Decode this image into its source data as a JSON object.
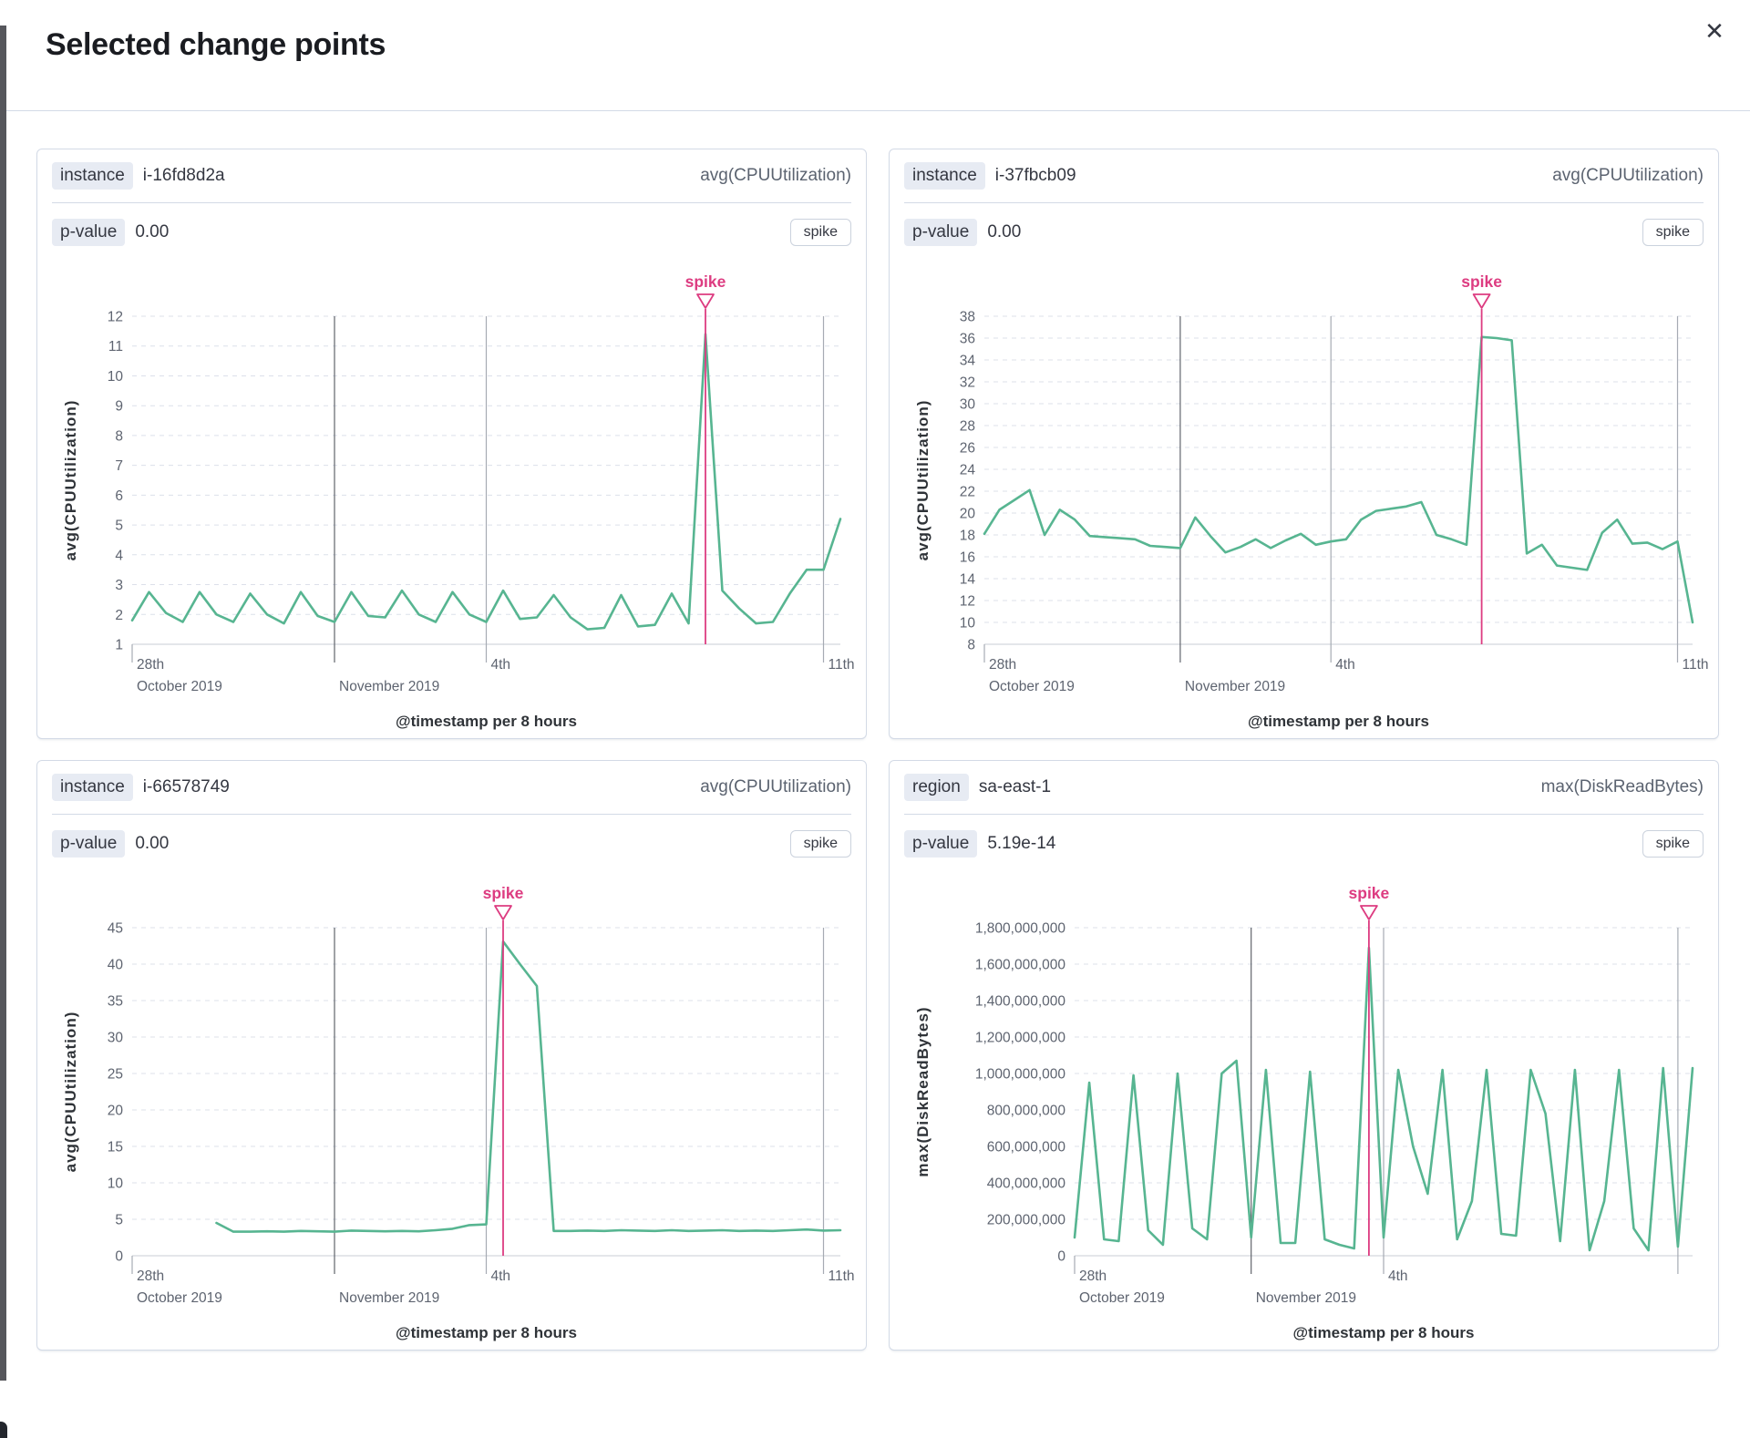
{
  "modal": {
    "title": "Selected change points",
    "close_label": "✕"
  },
  "colors": {
    "series_line": "#57B591",
    "annotation_pink": "#DD3C81",
    "grid_dashed": "#DCE0EA",
    "vline_dark": "#60646C",
    "vline_light": "#A6ABB3",
    "axis_line": "#C8CCD5",
    "tick_text": "#5E6470",
    "axis_title_text": "#2F3338"
  },
  "panels": [
    {
      "badge": "instance",
      "badge_value": "i-16fd8d2a",
      "metric": "avg(CPUUtilization)",
      "p_label": "p-value",
      "p_value": "0.00",
      "change_type": "spike"
    },
    {
      "badge": "instance",
      "badge_value": "i-37fbcb09",
      "metric": "avg(CPUUtilization)",
      "p_label": "p-value",
      "p_value": "0.00",
      "change_type": "spike"
    },
    {
      "badge": "instance",
      "badge_value": "i-66578749",
      "metric": "avg(CPUUtilization)",
      "p_label": "p-value",
      "p_value": "0.00",
      "change_type": "spike"
    },
    {
      "badge": "region",
      "badge_value": "sa-east-1",
      "metric": "max(DiskReadBytes)",
      "p_label": "p-value",
      "p_value": "5.19e-14",
      "change_type": "spike"
    }
  ],
  "chart_data": [
    {
      "type": "line",
      "title": "",
      "ylabel": "avg(CPUUtilization)",
      "xlabel": "@timestamp per 8 hours",
      "ylim": [
        1,
        12
      ],
      "y_ticks": [
        1,
        2,
        3,
        4,
        5,
        6,
        7,
        8,
        9,
        10,
        11,
        12
      ],
      "y_tick_labels": [
        "1",
        "2",
        "3",
        "4",
        "5",
        "6",
        "7",
        "8",
        "9",
        "10",
        "11",
        "12"
      ],
      "grid": true,
      "legend": false,
      "annotation": {
        "label": "spike",
        "index": 34
      },
      "x_ticks": [
        {
          "index": 0,
          "line": "tick",
          "row1": "28th",
          "row2": "October 2019"
        },
        {
          "index": 12,
          "line": "dark",
          "row1": "",
          "row2": "November 2019"
        },
        {
          "index": 21,
          "line": "light",
          "row1": "4th",
          "row2": ""
        },
        {
          "index": 41,
          "line": "light",
          "row1": "11th",
          "row2": ""
        }
      ],
      "values": [
        1.8,
        2.75,
        2.05,
        1.75,
        2.75,
        2.0,
        1.75,
        2.7,
        2.0,
        1.7,
        2.75,
        1.95,
        1.75,
        2.75,
        1.95,
        1.9,
        2.8,
        2.0,
        1.75,
        2.75,
        2.0,
        1.75,
        2.8,
        1.85,
        1.9,
        2.65,
        1.9,
        1.5,
        1.55,
        2.65,
        1.6,
        1.65,
        2.7,
        1.7,
        11.4,
        2.8,
        2.2,
        1.7,
        1.75,
        2.7,
        3.5,
        3.5,
        5.2
      ]
    },
    {
      "type": "line",
      "title": "",
      "ylabel": "avg(CPUUtilization)",
      "xlabel": "@timestamp per 8 hours",
      "ylim": [
        8,
        38
      ],
      "y_ticks": [
        8,
        10,
        12,
        14,
        16,
        18,
        20,
        22,
        24,
        26,
        28,
        30,
        32,
        34,
        36,
        38
      ],
      "y_tick_labels": [
        "8",
        "10",
        "12",
        "14",
        "16",
        "18",
        "20",
        "22",
        "24",
        "26",
        "28",
        "30",
        "32",
        "34",
        "36",
        "38"
      ],
      "grid": true,
      "legend": false,
      "annotation": {
        "label": "spike",
        "index": 33
      },
      "x_ticks": [
        {
          "index": 0,
          "line": "tick",
          "row1": "28th",
          "row2": "October 2019"
        },
        {
          "index": 13,
          "line": "dark",
          "row1": "",
          "row2": "November 2019"
        },
        {
          "index": 23,
          "line": "light",
          "row1": "4th",
          "row2": ""
        },
        {
          "index": 46,
          "line": "light",
          "row1": "11th",
          "row2": ""
        }
      ],
      "values": [
        18.1,
        20.3,
        21.2,
        22.1,
        18.0,
        20.3,
        19.4,
        17.9,
        17.8,
        17.7,
        17.6,
        17.0,
        16.9,
        16.8,
        19.6,
        17.9,
        16.4,
        16.9,
        17.6,
        16.8,
        17.5,
        18.1,
        17.1,
        17.4,
        17.6,
        19.4,
        20.2,
        20.4,
        20.6,
        21.0,
        18.0,
        17.6,
        17.1,
        36.1,
        36.0,
        35.8,
        16.3,
        17.1,
        15.2,
        15.0,
        14.8,
        18.2,
        19.4,
        17.2,
        17.3,
        16.7,
        17.4,
        10.0
      ]
    },
    {
      "type": "line",
      "title": "",
      "ylabel": "avg(CPUUtilization)",
      "xlabel": "@timestamp per 8 hours",
      "ylim": [
        0,
        45
      ],
      "y_ticks": [
        0,
        5,
        10,
        15,
        20,
        25,
        30,
        35,
        40,
        45
      ],
      "y_tick_labels": [
        "0",
        "5",
        "10",
        "15",
        "20",
        "25",
        "30",
        "35",
        "40",
        "45"
      ],
      "grid": true,
      "legend": false,
      "annotation": {
        "label": "spike",
        "index": 22
      },
      "x_ticks": [
        {
          "index": 0,
          "line": "tick",
          "row1": "28th",
          "row2": "October 2019"
        },
        {
          "index": 12,
          "line": "dark",
          "row1": "",
          "row2": "November 2019"
        },
        {
          "index": 21,
          "line": "light",
          "row1": "4th",
          "row2": ""
        },
        {
          "index": 41,
          "line": "light",
          "row1": "11th",
          "row2": ""
        }
      ],
      "values": [
        null,
        null,
        null,
        null,
        null,
        4.5,
        3.3,
        3.3,
        3.35,
        3.3,
        3.4,
        3.35,
        3.3,
        3.45,
        3.4,
        3.35,
        3.4,
        3.35,
        3.5,
        3.7,
        4.2,
        4.3,
        43.1,
        40.0,
        37.0,
        3.4,
        3.4,
        3.45,
        3.4,
        3.5,
        3.45,
        3.4,
        3.5,
        3.4,
        3.45,
        3.5,
        3.4,
        3.45,
        3.4,
        3.5,
        3.6,
        3.45,
        3.5
      ]
    },
    {
      "type": "line",
      "title": "",
      "ylabel": "max(DiskReadBytes)",
      "xlabel": "@timestamp per 8 hours",
      "ylim": [
        0,
        1800000000
      ],
      "y_ticks": [
        0,
        200000000,
        400000000,
        600000000,
        800000000,
        1000000000,
        1200000000,
        1400000000,
        1600000000,
        1800000000
      ],
      "y_tick_labels": [
        "0",
        "200,000,000",
        "400,000,000",
        "600,000,000",
        "800,000,000",
        "1,000,000,000",
        "1,200,000,000",
        "1,400,000,000",
        "1,600,000,000",
        "1,800,000,000"
      ],
      "grid": true,
      "legend": false,
      "annotation": {
        "label": "spike",
        "index": 20
      },
      "x_ticks": [
        {
          "index": 0,
          "line": "tick",
          "row1": "28th",
          "row2": "October 2019"
        },
        {
          "index": 12,
          "line": "dark",
          "row1": "",
          "row2": "November 2019"
        },
        {
          "index": 21,
          "line": "light",
          "row1": "4th",
          "row2": ""
        },
        {
          "index": 41,
          "line": "light",
          "row1": "",
          "row2": ""
        }
      ],
      "values": [
        100000000,
        950000000,
        90000000,
        80000000,
        990000000,
        140000000,
        60000000,
        1000000000,
        150000000,
        90000000,
        1000000000,
        1070000000,
        100000000,
        1020000000,
        70000000,
        70000000,
        1010000000,
        90000000,
        60000000,
        40000000,
        1690000000,
        100000000,
        1020000000,
        600000000,
        340000000,
        1020000000,
        90000000,
        300000000,
        1020000000,
        120000000,
        110000000,
        1020000000,
        780000000,
        80000000,
        1020000000,
        30000000,
        300000000,
        1020000000,
        150000000,
        30000000,
        1030000000,
        50000000,
        1030000000
      ]
    }
  ]
}
